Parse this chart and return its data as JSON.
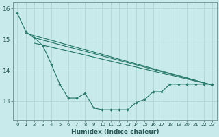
{
  "xlabel": "Humidex (Indice chaleur)",
  "bg_color": "#c8eaea",
  "line_color": "#2a7a6a",
  "grid_color": "#b0d8d0",
  "xlim": [
    -0.5,
    23.5
  ],
  "ylim": [
    12.4,
    16.2
  ],
  "yticks": [
    13,
    14,
    15,
    16
  ],
  "xticks": [
    0,
    1,
    2,
    3,
    4,
    5,
    6,
    7,
    8,
    9,
    10,
    11,
    12,
    13,
    14,
    15,
    16,
    17,
    18,
    19,
    20,
    21,
    22,
    23
  ],
  "series_main": [
    15.85,
    15.25,
    15.05,
    14.8,
    14.2,
    13.55,
    13.1,
    13.1,
    13.25,
    12.78,
    12.72,
    12.72,
    12.72,
    12.72,
    12.95,
    13.05,
    13.3,
    13.3,
    13.55,
    13.55,
    13.55,
    13.55,
    13.55,
    13.55
  ],
  "line1_x": [
    1,
    23
  ],
  "line1_y": [
    15.2,
    13.52
  ],
  "line2_x": [
    2,
    23
  ],
  "line2_y": [
    15.05,
    13.52
  ],
  "line3_x": [
    2,
    23
  ],
  "line3_y": [
    14.88,
    13.52
  ]
}
